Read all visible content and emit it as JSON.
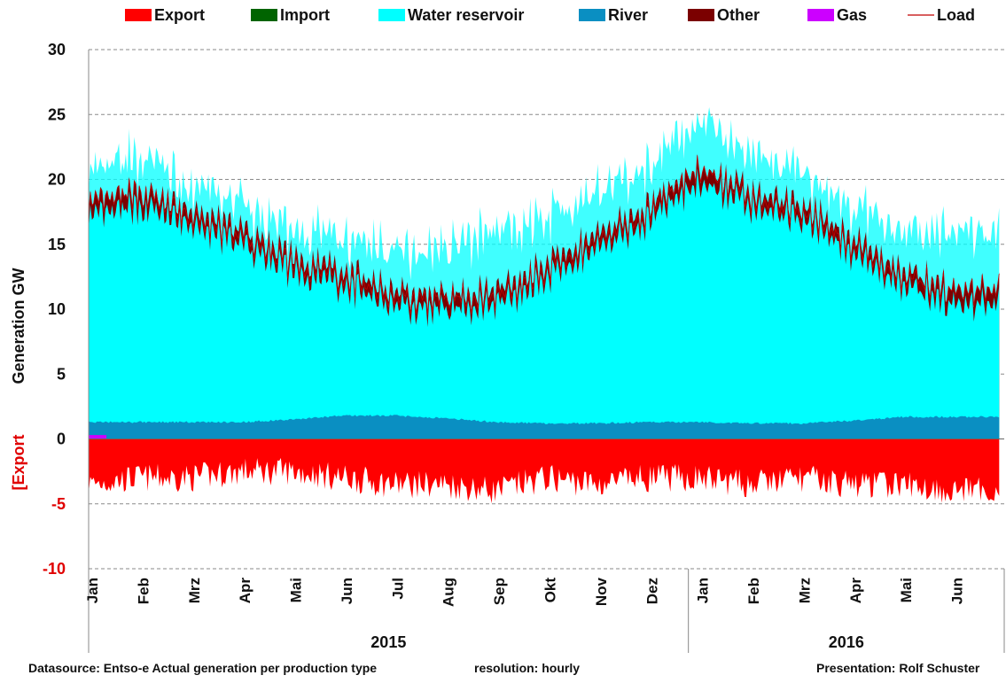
{
  "chart_data": {
    "type": "area",
    "title": "",
    "ylabel": "Generation   GW",
    "ylabel_negative": "[Export",
    "ylim": [
      -10,
      30
    ],
    "yticks": [
      30,
      25,
      20,
      15,
      10,
      5,
      0,
      -5,
      -10
    ],
    "grid": true,
    "legend_position": "top",
    "legend": [
      {
        "name": "Export",
        "color": "#ff0000",
        "kind": "area"
      },
      {
        "name": "Import",
        "color": "#006400",
        "kind": "area"
      },
      {
        "name": "Water reservoir",
        "color": "#00ffff",
        "kind": "area"
      },
      {
        "name": "River",
        "color": "#0a8fc2",
        "kind": "area"
      },
      {
        "name": "Other",
        "color": "#7b0000",
        "kind": "area"
      },
      {
        "name": "Gas",
        "color": "#cc00ff",
        "kind": "area"
      },
      {
        "name": "Load",
        "color": "#c00000",
        "kind": "line"
      }
    ],
    "x_months": [
      "Jan",
      "Feb",
      "Mrz",
      "Apr",
      "Mai",
      "Jun",
      "Jul",
      "Aug",
      "Sep",
      "Okt",
      "Nov",
      "Dez",
      "Jan",
      "Feb",
      "Mrz",
      "Apr",
      "Mai",
      "Jun"
    ],
    "years": [
      {
        "label": "2015",
        "first_month": 0,
        "last_month": 11
      },
      {
        "label": "2016",
        "first_month": 12,
        "last_month": 17
      }
    ],
    "series_monthly_approx": {
      "months": [
        "Jan 2015",
        "Feb",
        "Mrz",
        "Apr",
        "Mai",
        "Jun",
        "Jul",
        "Aug",
        "Sep",
        "Okt",
        "Nov",
        "Dez",
        "Jan 2016",
        "Feb",
        "Mrz",
        "Apr",
        "Mai",
        "Jun"
      ],
      "river": [
        1.3,
        1.3,
        1.3,
        1.3,
        1.5,
        1.8,
        1.8,
        1.6,
        1.3,
        1.2,
        1.2,
        1.3,
        1.3,
        1.2,
        1.2,
        1.4,
        1.7,
        1.7
      ],
      "other_top": [
        18.0,
        19.0,
        17.5,
        16.0,
        14.0,
        13.0,
        11.5,
        11.0,
        11.5,
        13.5,
        15.5,
        18.0,
        21.0,
        19.0,
        18.0,
        15.5,
        13.0,
        11.5
      ],
      "water_reservoir_top": [
        20.0,
        21.5,
        19.0,
        17.5,
        15.5,
        15.0,
        14.0,
        14.5,
        15.5,
        16.5,
        18.5,
        20.5,
        24.5,
        21.5,
        20.0,
        17.5,
        15.5,
        15.5
      ],
      "load": [
        18.0,
        19.0,
        17.0,
        15.5,
        13.5,
        12.5,
        11.0,
        10.8,
        11.0,
        13.0,
        15.0,
        17.5,
        21.0,
        18.5,
        17.5,
        15.0,
        12.5,
        11.5
      ],
      "export": [
        -3.5,
        -3.0,
        -3.0,
        -2.5,
        -2.5,
        -3.0,
        -3.5,
        -3.5,
        -4.0,
        -3.0,
        -3.5,
        -3.0,
        -3.0,
        -3.5,
        -3.0,
        -3.5,
        -3.5,
        -4.0
      ],
      "gas": [
        0.3,
        0.0,
        0.0,
        0.0,
        0.0,
        0.0,
        0.0,
        0.0,
        0.0,
        0.0,
        0.0,
        0.0,
        0.0,
        0.0,
        0.0,
        0.0,
        0.0,
        0.0
      ]
    }
  },
  "footer": {
    "source": "Datasource: Entso-e  Actual generation per production type",
    "resolution": "resolution: hourly",
    "presentation": "Presentation:  Rolf Schuster"
  }
}
